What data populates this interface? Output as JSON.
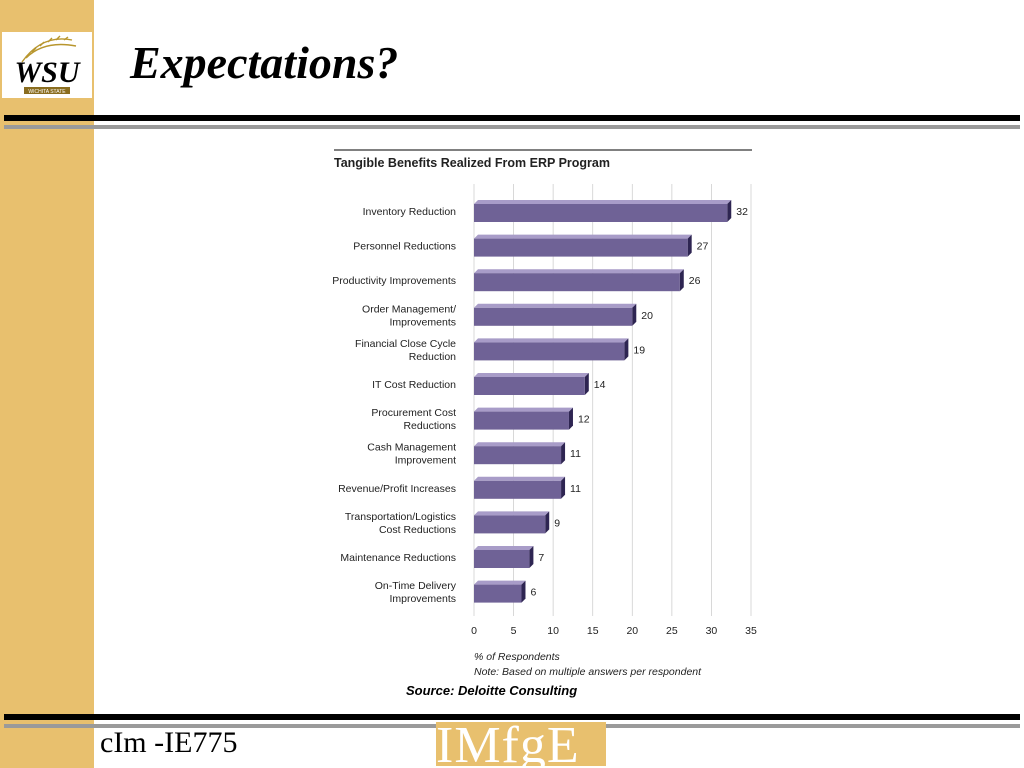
{
  "slide": {
    "title": "Expectations?",
    "footer": "cIm -IE775",
    "footer_logo_text": "IMfgE",
    "logo_text": "WSU",
    "logo_ribbon_text": "WICHITA STATE"
  },
  "colors": {
    "band": "#e8c06e",
    "bar_front": "#6f6296",
    "bar_top": "#a89cc8",
    "bar_side": "#2e2552"
  },
  "chart_data": {
    "type": "bar",
    "orientation": "horizontal",
    "title": "Tangible Benefits Realized From ERP Program",
    "categories": [
      [
        "Inventory Reduction"
      ],
      [
        "Personnel Reductions"
      ],
      [
        "Productivity Improvements"
      ],
      [
        "Order Management/",
        "Improvements"
      ],
      [
        "Financial Close Cycle",
        "Reduction"
      ],
      [
        "IT Cost Reduction"
      ],
      [
        "Procurement Cost",
        "Reductions"
      ],
      [
        "Cash Management",
        "Improvement"
      ],
      [
        "Revenue/Profit Increases"
      ],
      [
        "Transportation/Logistics",
        "Cost Reductions"
      ],
      [
        "Maintenance Reductions"
      ],
      [
        "On-Time Delivery",
        "Improvements"
      ]
    ],
    "values": [
      32,
      27,
      26,
      20,
      19,
      14,
      12,
      11,
      11,
      9,
      7,
      6
    ],
    "xlim": [
      0,
      35
    ],
    "xticks": [
      0,
      5,
      10,
      15,
      20,
      25,
      30,
      35
    ],
    "xlabel": "% of Respondents",
    "note": "Note: Based on multiple answers per respondent",
    "source": "Source: Deloitte Consulting",
    "grid": true
  }
}
